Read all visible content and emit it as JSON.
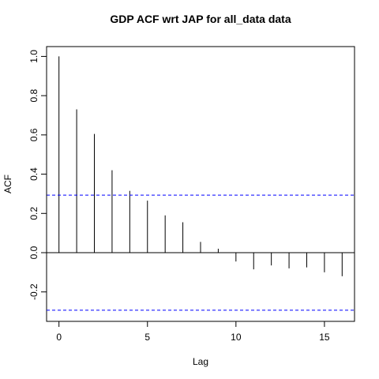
{
  "chart_data": {
    "type": "bar",
    "title": "GDP ACF wrt JAP for all_data data",
    "xlabel": "Lag",
    "ylabel": "ACF",
    "x": [
      0,
      1,
      2,
      3,
      4,
      5,
      6,
      7,
      8,
      9,
      10,
      11,
      12,
      13,
      14,
      15,
      16
    ],
    "values": [
      1.0,
      0.73,
      0.605,
      0.42,
      0.315,
      0.265,
      0.19,
      0.155,
      0.055,
      0.02,
      -0.045,
      -0.085,
      -0.065,
      -0.08,
      -0.075,
      -0.1,
      -0.12
    ],
    "xlim": [
      -0.7,
      16.7
    ],
    "ylim": [
      -0.35,
      1.05
    ],
    "xticks": [
      "0",
      "5",
      "10",
      "15"
    ],
    "yticks": [
      "-0.2",
      "0.0",
      "0.2",
      "0.4",
      "0.6",
      "0.8",
      "1.0"
    ],
    "confidence_bounds": [
      0.293,
      -0.293
    ],
    "zero_line": 0,
    "colors": {
      "bars": "#000000",
      "bounds": "#0000ff",
      "axis": "#000000"
    },
    "grid": false,
    "legend": "none"
  }
}
